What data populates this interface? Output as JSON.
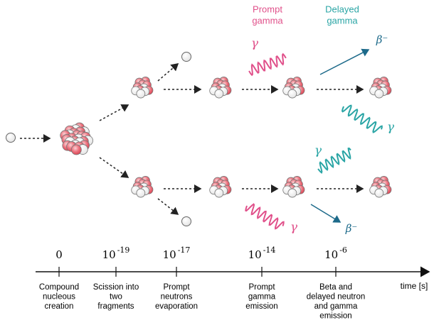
{
  "title_labels": {
    "prompt_gamma": [
      "Prompt",
      "gamma"
    ],
    "delayed_gamma": [
      "Delayed",
      "gamma"
    ]
  },
  "gamma_labels": [
    "γ",
    "γ",
    "γ",
    "γ"
  ],
  "beta_labels": [
    "β⁻",
    "β⁻"
  ],
  "timeline": {
    "axis_label": "time [s]",
    "stages": [
      {
        "time": [
          "0"
        ],
        "description": [
          "Compound",
          "nucleous",
          "creation"
        ]
      },
      {
        "time": [
          "10",
          "-19"
        ],
        "description": [
          "Scission into",
          "two",
          "fragments"
        ]
      },
      {
        "time": [
          "10",
          "-17"
        ],
        "description": [
          "Prompt",
          "neutrons",
          "evaporation"
        ]
      },
      {
        "time": [
          "10",
          "-14"
        ],
        "description": [
          "Prompt",
          "gamma",
          "emission"
        ]
      },
      {
        "time": [
          "10",
          "-6"
        ],
        "description": [
          "Beta and",
          "delayed neutron",
          "and gamma",
          "emission"
        ]
      }
    ]
  }
}
